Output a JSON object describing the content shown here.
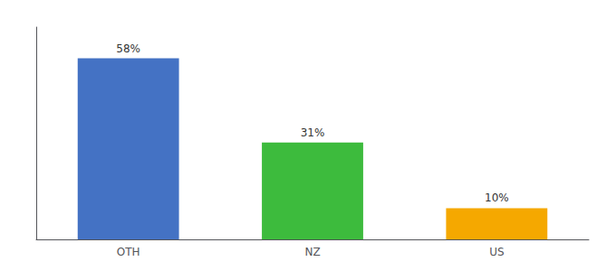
{
  "chart_data": {
    "type": "bar",
    "categories": [
      "OTH",
      "NZ",
      "US"
    ],
    "values": [
      58,
      31,
      10
    ],
    "value_labels": [
      "58%",
      "31%",
      "10%"
    ],
    "colors": [
      "#4472c4",
      "#3dbb3d",
      "#f5a800"
    ],
    "ylim": [
      0,
      68
    ],
    "grid": false,
    "data_labels": true,
    "tick_labels": "x"
  }
}
